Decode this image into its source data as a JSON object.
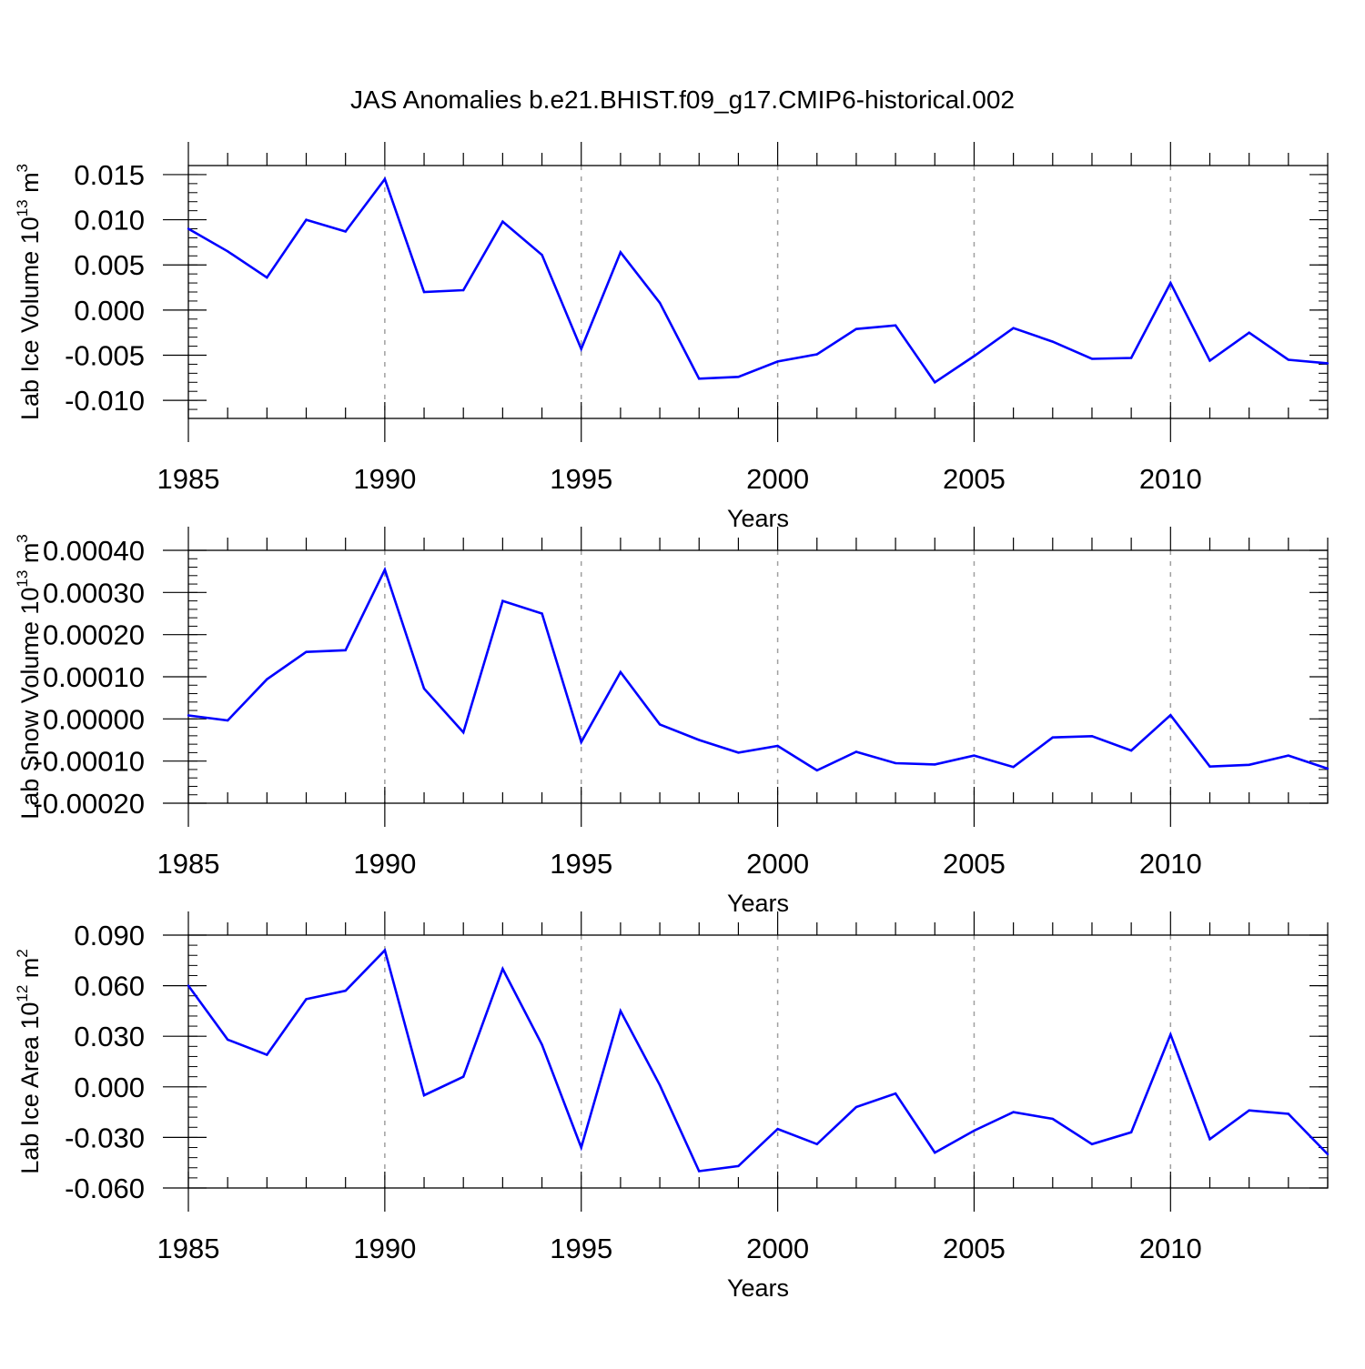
{
  "title": "JAS Anomalies b.e21.BHIST.f09_g17.CMIP6-historical.002",
  "line_color": "#0000ff",
  "grid_color": "#a0a0a0",
  "chart_data": [
    {
      "type": "line",
      "ylabel": "Lab Ice Volume 10",
      "ylabel_exp": "13",
      "ylabel_unit": " m",
      "ylabel_unit_exp": "3",
      "xlabel": "Years",
      "xlim": [
        1985,
        2014
      ],
      "ylim": [
        -0.012,
        0.016
      ],
      "yticks": [
        -0.01,
        -0.005,
        0.0,
        0.005,
        0.01,
        0.015
      ],
      "ytick_labels": [
        "-0.010",
        "-0.005",
        "0.000",
        "0.005",
        "0.010",
        "0.015"
      ],
      "xticks": [
        1985,
        1990,
        1995,
        2000,
        2005,
        2010
      ],
      "xtick_labels": [
        "1985",
        "1990",
        "1995",
        "2000",
        "2005",
        "2010"
      ],
      "vgrid": [
        1990,
        1995,
        2000,
        2005,
        2010
      ],
      "x": [
        1985,
        1986,
        1987,
        1988,
        1989,
        1990,
        1991,
        1992,
        1993,
        1994,
        1995,
        1996,
        1997,
        1998,
        1999,
        2000,
        2001,
        2002,
        2003,
        2004,
        2005,
        2006,
        2007,
        2008,
        2009,
        2010,
        2011,
        2012,
        2013,
        2014
      ],
      "y": [
        0.009,
        0.0065,
        0.0036,
        0.01,
        0.0087,
        0.0145,
        0.002,
        0.0022,
        0.0098,
        0.0061,
        -0.0043,
        0.0064,
        0.0008,
        -0.0076,
        -0.0074,
        -0.0057,
        -0.0049,
        -0.0021,
        -0.0017,
        -0.008,
        -0.0051,
        -0.002,
        -0.0035,
        -0.0054,
        -0.0053,
        0.003,
        -0.0056,
        -0.0025,
        -0.0055,
        -0.0059
      ]
    },
    {
      "type": "line",
      "ylabel": "Lab Snow Volume 10",
      "ylabel_exp": "13",
      "ylabel_unit": " m",
      "ylabel_unit_exp": "3",
      "xlabel": "Years",
      "xlim": [
        1985,
        2014
      ],
      "ylim": [
        -0.0002,
        0.0004
      ],
      "yticks": [
        -0.0002,
        -0.0001,
        0.0,
        0.0001,
        0.0002,
        0.0003,
        0.0004
      ],
      "ytick_labels": [
        "-0.00020",
        "-0.00010",
        "0.00000",
        "0.00010",
        "0.00020",
        "0.00030",
        "0.00040"
      ],
      "xticks": [
        1985,
        1990,
        1995,
        2000,
        2005,
        2010
      ],
      "xtick_labels": [
        "1985",
        "1990",
        "1995",
        "2000",
        "2005",
        "2010"
      ],
      "vgrid": [
        1990,
        1995,
        2000,
        2005,
        2010
      ],
      "x": [
        1985,
        1986,
        1987,
        1988,
        1989,
        1990,
        1991,
        1992,
        1993,
        1994,
        1995,
        1996,
        1997,
        1998,
        1999,
        2000,
        2001,
        2002,
        2003,
        2004,
        2005,
        2006,
        2007,
        2008,
        2009,
        2010,
        2011,
        2012,
        2013,
        2014
      ],
      "y": [
        8.3e-06,
        -3.5e-06,
        9.4e-05,
        0.000159,
        0.000163,
        0.000354,
        7.2e-05,
        -3.2e-05,
        0.00028,
        0.00025,
        -5.5e-05,
        0.000111,
        -1.3e-05,
        -5e-05,
        -8e-05,
        -6.4e-05,
        -0.000122,
        -7.8e-05,
        -0.000105,
        -0.000108,
        -8.7e-05,
        -0.000114,
        -4.4e-05,
        -4.1e-05,
        -7.5e-05,
        9e-06,
        -0.000113,
        -0.000109,
        -8.7e-05,
        -0.000118
      ]
    },
    {
      "type": "line",
      "ylabel": "Lab Ice Area 10",
      "ylabel_exp": "12",
      "ylabel_unit": " m",
      "ylabel_unit_exp": "2",
      "xlabel": "Years",
      "xlim": [
        1985,
        2014
      ],
      "ylim": [
        -0.06,
        0.09
      ],
      "yticks": [
        -0.06,
        -0.03,
        0.0,
        0.03,
        0.06,
        0.09
      ],
      "ytick_labels": [
        "-0.060",
        "-0.030",
        "0.000",
        "0.030",
        "0.060",
        "0.090"
      ],
      "xticks": [
        1985,
        1990,
        1995,
        2000,
        2005,
        2010
      ],
      "xtick_labels": [
        "1985",
        "1990",
        "1995",
        "2000",
        "2005",
        "2010"
      ],
      "vgrid": [
        1990,
        1995,
        2000,
        2005,
        2010
      ],
      "x": [
        1985,
        1986,
        1987,
        1988,
        1989,
        1990,
        1991,
        1992,
        1993,
        1994,
        1995,
        1996,
        1997,
        1998,
        1999,
        2000,
        2001,
        2002,
        2003,
        2004,
        2005,
        2006,
        2007,
        2008,
        2009,
        2010,
        2011,
        2012,
        2013,
        2014
      ],
      "y": [
        0.06,
        0.028,
        0.019,
        0.052,
        0.057,
        0.081,
        -0.005,
        0.006,
        0.07,
        0.025,
        -0.036,
        0.045,
        0.001,
        -0.05,
        -0.047,
        -0.025,
        -0.034,
        -0.012,
        -0.004,
        -0.039,
        -0.026,
        -0.015,
        -0.019,
        -0.034,
        -0.027,
        0.031,
        -0.031,
        -0.014,
        -0.016,
        -0.04
      ]
    }
  ]
}
